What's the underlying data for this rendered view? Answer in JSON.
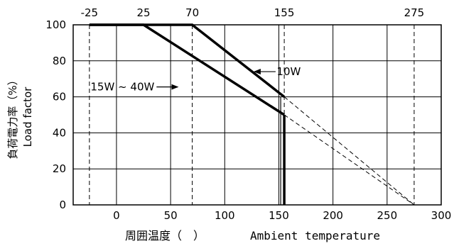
{
  "chart_data": {
    "type": "line",
    "xlim": [
      -40,
      300
    ],
    "ylim": [
      0,
      100
    ],
    "x_ticks": [
      0,
      50,
      100,
      150,
      200,
      250,
      300
    ],
    "y_ticks": [
      0,
      20,
      40,
      60,
      80,
      100
    ],
    "top_ticks": [
      -25,
      25,
      70,
      155,
      275
    ],
    "top_tick_labels": [
      "-25",
      "25",
      "70",
      "155",
      "275"
    ],
    "x_tick_labels": [
      "0",
      "50",
      "100",
      "150",
      "200",
      "250",
      "300"
    ],
    "y_tick_labels": [
      "0",
      "20",
      "40",
      "60",
      "80",
      "100"
    ],
    "vertical_dashed_refs": [
      -25,
      70,
      155,
      275
    ],
    "grid": true,
    "ylabel_ja": "負荷電力率（%）",
    "ylabel_en": "Load factor",
    "xlabel_ja": "周囲温度（　）",
    "xlabel_en": "Ambient temperature",
    "series": [
      {
        "name": "10W",
        "x": [
          -25,
          70,
          155
        ],
        "y": [
          100,
          100,
          60
        ]
      },
      {
        "name": "15W ~ 40W",
        "x": [
          -25,
          25,
          155
        ],
        "y": [
          100,
          100,
          50
        ]
      }
    ],
    "cutoff": {
      "x": 155,
      "y_top": 50,
      "y_bottom": 0
    },
    "dashed_extensions": [
      {
        "x": [
          155,
          275
        ],
        "y": [
          60,
          0
        ]
      },
      {
        "x": [
          155,
          275
        ],
        "y": [
          50,
          0
        ]
      }
    ],
    "annotations": [
      {
        "text": "10W",
        "series": "10W"
      },
      {
        "text": "15W ~ 40W",
        "series": "15W ~ 40W"
      }
    ]
  }
}
